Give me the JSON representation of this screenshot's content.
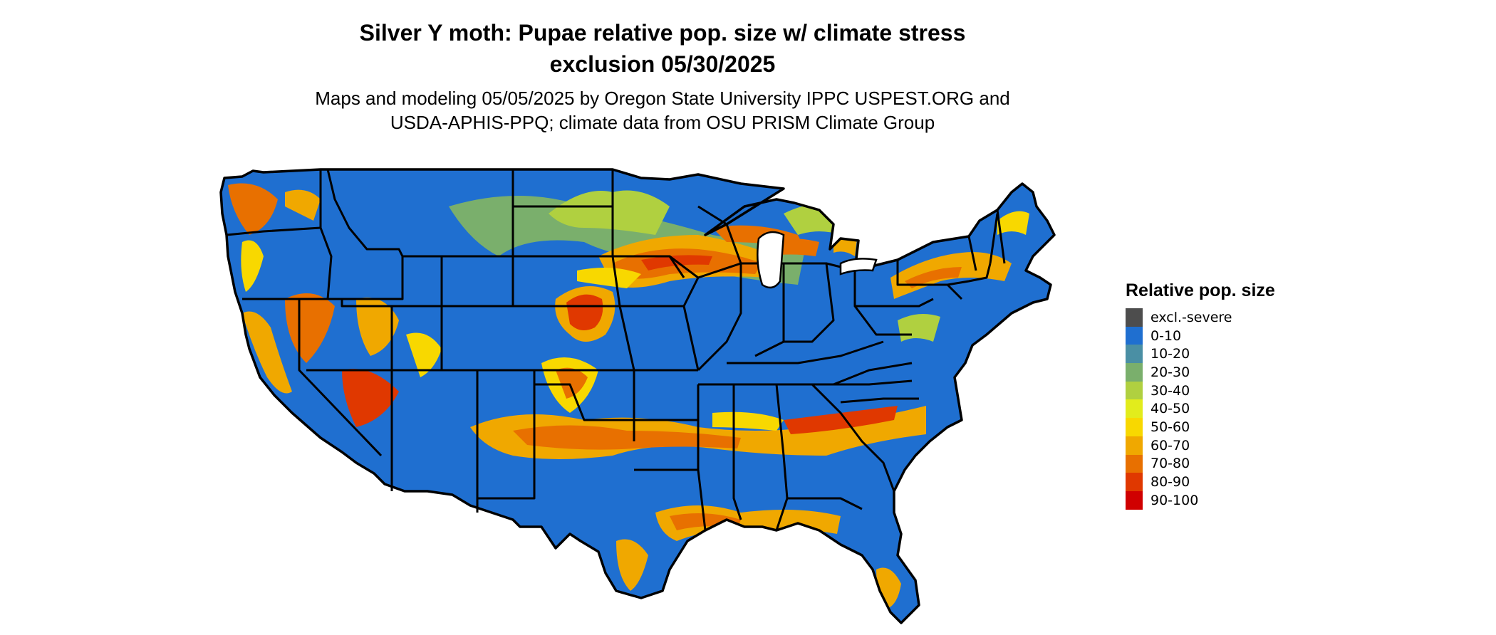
{
  "title_line1": "Silver Y moth: Pupae relative pop. size w/ climate stress",
  "title_line2": "exclusion 05/30/2025",
  "subtitle_line1": "Maps and modeling 05/05/2025 by Oregon State University IPPC USPEST.ORG and",
  "subtitle_line2": "USDA-APHIS-PPQ; climate data from OSU PRISM Climate Group",
  "legend": {
    "title": "Relative pop. size",
    "items": [
      {
        "label": "excl.-severe",
        "color": "#4d4d4d"
      },
      {
        "label": "0-10",
        "color": "#1f6fd0"
      },
      {
        "label": "10-20",
        "color": "#4a8fa4"
      },
      {
        "label": "20-30",
        "color": "#7aaf6c"
      },
      {
        "label": "30-40",
        "color": "#b0d040"
      },
      {
        "label": "40-50",
        "color": "#e2ec1c"
      },
      {
        "label": "50-60",
        "color": "#f8d800"
      },
      {
        "label": "60-70",
        "color": "#f0a800"
      },
      {
        "label": "70-80",
        "color": "#e87000"
      },
      {
        "label": "80-90",
        "color": "#e03800"
      },
      {
        "label": "90-100",
        "color": "#d00000"
      }
    ]
  },
  "map": {
    "region": "Contiguous United States",
    "base_color": "#1f6fd0",
    "border_color": "#000000"
  }
}
